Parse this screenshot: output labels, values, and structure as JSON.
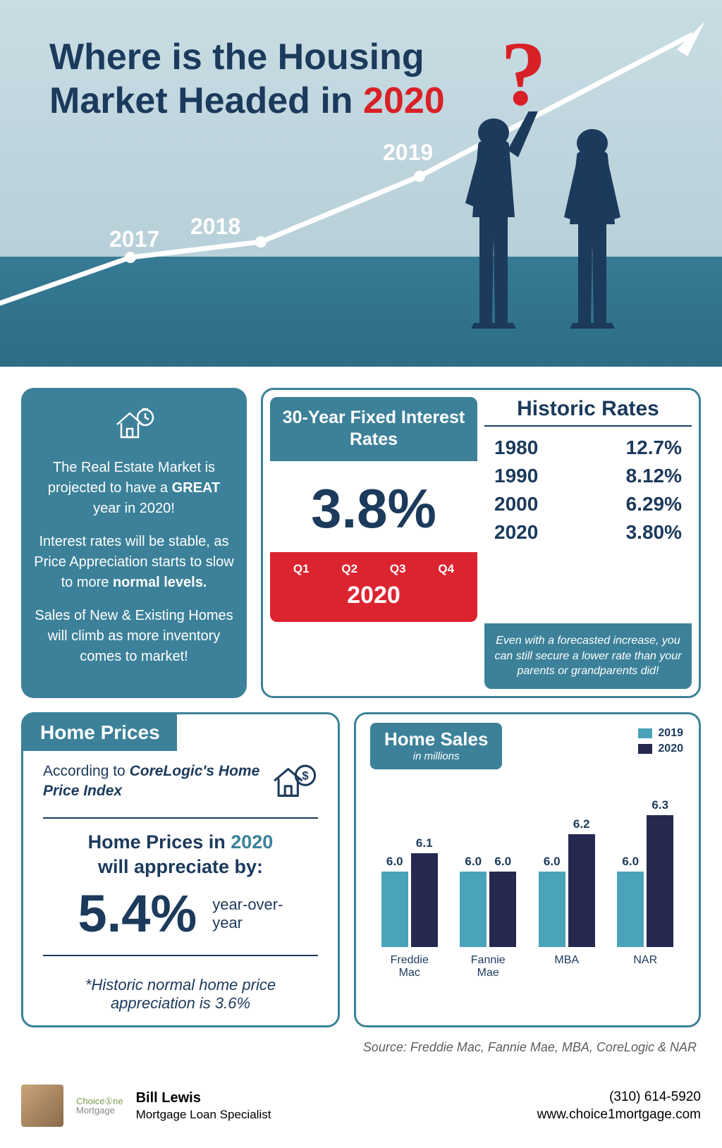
{
  "hero": {
    "title_line1": "Where is the Housing",
    "title_line2_a": "Market Headed in ",
    "title_line2_year": "2020",
    "trend_labels": [
      "2017",
      "2018",
      "2019"
    ],
    "trend_points": [
      [
        0,
        430
      ],
      [
        185,
        365
      ],
      [
        370,
        343
      ],
      [
        595,
        250
      ],
      [
        980,
        50
      ]
    ],
    "bg_top": "#c9dce3",
    "bg_band": "#2d6d85",
    "title_color": "#1b3a5c",
    "accent_red": "#d92027"
  },
  "colors": {
    "teal": "#3c8199",
    "navy": "#1b3a5c",
    "red": "#dc2430",
    "bar2019": "#4aa3b8",
    "bar2020": "#25284f"
  },
  "intro": {
    "p1_a": "The Real Estate Market is projected to have a ",
    "p1_bold": "GREAT",
    "p1_b": " year in 2020!",
    "p2_a": "Interest rates will be stable, as Price Appreciation starts to slow to more ",
    "p2_bold": "normal levels.",
    "p3": "Sales of New & Existing Homes will climb as more inventory comes to market!"
  },
  "rates": {
    "title": "30-Year Fixed Interest Rates",
    "big_rate": "3.8%",
    "quarters": [
      "Q1",
      "Q2",
      "Q3",
      "Q4"
    ],
    "year": "2020",
    "historic_title": "Historic Rates",
    "historic": [
      {
        "year": "1980",
        "rate": "12.7%"
      },
      {
        "year": "1990",
        "rate": "8.12%"
      },
      {
        "year": "2000",
        "rate": "6.29%"
      },
      {
        "year": "2020",
        "rate": "3.80%"
      }
    ],
    "note": "Even with a forecasted increase, you can still secure a lower rate than your parents or grandparents did!"
  },
  "prices": {
    "title": "Home Prices",
    "sub_a": "According to ",
    "sub_ital": "CoreLogic's Home Price Index",
    "line_a": "Home Prices in ",
    "line_year": "2020",
    "line_b": " will appreciate by:",
    "pct": "5.4%",
    "yoy": "year-over-year",
    "footnote": "*Historic normal home price appreciation is 3.6%"
  },
  "sales": {
    "title": "Home Sales",
    "subtitle": "in millions",
    "legend": [
      {
        "label": "2019",
        "color": "#4aa3b8"
      },
      {
        "label": "2020",
        "color": "#25284f"
      }
    ],
    "max": 6.5,
    "groups": [
      {
        "label": "Freddie Mac",
        "v2019": 6.0,
        "v2020": 6.1
      },
      {
        "label": "Fannie Mae",
        "v2019": 6.0,
        "v2020": 6.0
      },
      {
        "label": "MBA",
        "v2019": 6.0,
        "v2020": 6.2
      },
      {
        "label": "NAR",
        "v2019": 6.0,
        "v2020": 6.3
      }
    ]
  },
  "source": "Source: Freddie Mac, Fannie Mae, MBA, CoreLogic & NAR",
  "footer": {
    "logo_top": "Choice①ne",
    "logo_sub": "Mortgage",
    "name": "Bill Lewis",
    "role": "Mortgage Loan Specialist",
    "phone": "(310) 614-5920",
    "url": "www.choice1mortgage.com"
  }
}
